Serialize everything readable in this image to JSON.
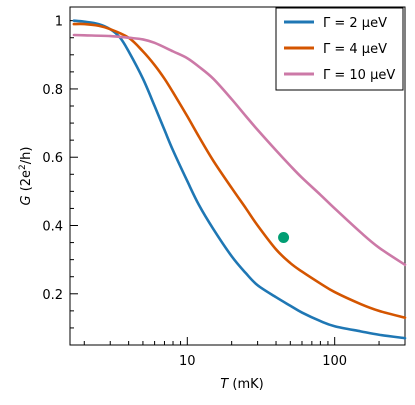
{
  "chart_data": {
    "type": "line",
    "xlabel_symbol": "T",
    "xlabel_unit": " (mK)",
    "ylabel_symbol": "G",
    "ylabel_unit_pre": "  (2e",
    "ylabel_unit_sup": "2",
    "ylabel_unit_post": "/h)",
    "x_scale": "log",
    "xlim": [
      1.6,
      300
    ],
    "ylim": [
      0.05,
      1.04
    ],
    "x_ticks": [
      10,
      100
    ],
    "x_tick_labels": [
      "10",
      "100"
    ],
    "y_ticks": [
      0.2,
      0.4,
      0.6,
      0.8,
      1.0
    ],
    "y_tick_labels": [
      "0.2",
      "0.4",
      "0.6",
      "0.8",
      "1"
    ],
    "legend_position": "top-right",
    "series": [
      {
        "name": "Γ = 2 μeV",
        "color": "#1f77b4",
        "x": [
          1.7,
          2.0,
          2.5,
          3.0,
          3.5,
          4.0,
          5.0,
          6.0,
          7.0,
          8.0,
          10.0,
          12.0,
          15.0,
          20.0,
          25.0,
          30.0,
          40.0,
          50.0,
          60.0,
          80.0,
          100.0,
          150.0,
          200.0,
          300.0
        ],
        "y": [
          1.0,
          0.997,
          0.99,
          0.975,
          0.95,
          0.91,
          0.83,
          0.75,
          0.68,
          0.62,
          0.53,
          0.46,
          0.39,
          0.31,
          0.26,
          0.225,
          0.19,
          0.165,
          0.145,
          0.12,
          0.105,
          0.09,
          0.08,
          0.07
        ]
      },
      {
        "name": "Γ = 4 μeV",
        "color": "#d45500",
        "x": [
          1.7,
          2.0,
          2.5,
          3.0,
          4.0,
          5.0,
          6.0,
          7.0,
          8.0,
          10.0,
          12.0,
          15.0,
          20.0,
          25.0,
          30.0,
          40.0,
          50.0,
          60.0,
          80.0,
          100.0,
          150.0,
          200.0,
          300.0
        ],
        "y": [
          0.99,
          0.99,
          0.985,
          0.975,
          0.95,
          0.91,
          0.87,
          0.83,
          0.79,
          0.72,
          0.66,
          0.59,
          0.51,
          0.45,
          0.4,
          0.33,
          0.29,
          0.265,
          0.23,
          0.205,
          0.17,
          0.15,
          0.13
        ]
      },
      {
        "name": "Γ = 10 μeV",
        "color": "#cc79a7",
        "x": [
          1.7,
          2.0,
          3.0,
          4.0,
          5.0,
          6.0,
          8.0,
          10.0,
          12.0,
          15.0,
          20.0,
          25.0,
          30.0,
          40.0,
          50.0,
          60.0,
          80.0,
          100.0,
          150.0,
          200.0,
          300.0
        ],
        "y": [
          0.958,
          0.957,
          0.955,
          0.95,
          0.945,
          0.935,
          0.91,
          0.89,
          0.865,
          0.83,
          0.77,
          0.72,
          0.68,
          0.62,
          0.575,
          0.54,
          0.49,
          0.45,
          0.38,
          0.335,
          0.285
        ]
      }
    ],
    "marker": {
      "x": 45,
      "y": 0.365,
      "color": "#009e73"
    }
  }
}
